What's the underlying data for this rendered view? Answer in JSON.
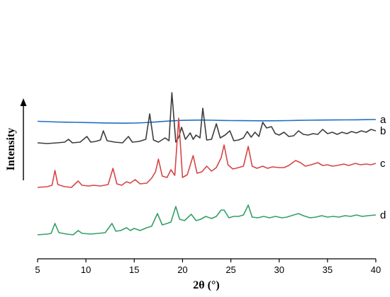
{
  "chart_data": {
    "type": "line",
    "xlabel": "2θ (°)",
    "ylabel": "Intensity",
    "xlim": [
      5,
      40
    ],
    "xticks": [
      5,
      10,
      15,
      20,
      25,
      30,
      35,
      40
    ],
    "tick_labels": [
      "5",
      "10",
      "15",
      "20",
      "25",
      "30",
      "35",
      "40"
    ],
    "legend": "inline-right",
    "grid": false,
    "series": [
      {
        "label": "a",
        "color": "#1f6fc4",
        "offset": 92,
        "points": [
          [
            5,
            1.5
          ],
          [
            6,
            1.0
          ],
          [
            7,
            0.5
          ],
          [
            8,
            0.2
          ],
          [
            9,
            0.0
          ],
          [
            10,
            -0.3
          ],
          [
            11,
            -0.6
          ],
          [
            12,
            -0.9
          ],
          [
            13,
            -1.1
          ],
          [
            14,
            -1.2
          ],
          [
            15,
            -1.0
          ],
          [
            16,
            -0.5
          ],
          [
            17,
            0.3
          ],
          [
            18,
            1.3
          ],
          [
            19,
            2.2
          ],
          [
            20,
            2.8
          ],
          [
            21,
            3.1
          ],
          [
            22,
            3.2
          ],
          [
            23,
            3.0
          ],
          [
            24,
            2.7
          ],
          [
            25,
            2.5
          ],
          [
            26,
            2.4
          ],
          [
            27,
            2.3
          ],
          [
            28,
            2.2
          ],
          [
            29,
            2.2
          ],
          [
            30,
            2.3
          ],
          [
            31,
            2.5
          ],
          [
            32,
            2.8
          ],
          [
            33,
            3.0
          ],
          [
            34,
            3.2
          ],
          [
            35,
            3.3
          ],
          [
            36,
            3.4
          ],
          [
            37,
            3.5
          ],
          [
            38,
            3.6
          ],
          [
            39,
            3.8
          ],
          [
            40,
            4.0
          ]
        ]
      },
      {
        "label": "b",
        "color": "#3d3d3d",
        "offset": 62,
        "points": [
          [
            5,
            1
          ],
          [
            6,
            0
          ],
          [
            7,
            1
          ],
          [
            7.8,
            2
          ],
          [
            8.2,
            6
          ],
          [
            8.6,
            1
          ],
          [
            9.4,
            2
          ],
          [
            10.1,
            10
          ],
          [
            10.5,
            2
          ],
          [
            11,
            3
          ],
          [
            11.5,
            5
          ],
          [
            11.8,
            18
          ],
          [
            12.2,
            4
          ],
          [
            13,
            2
          ],
          [
            13.8,
            1
          ],
          [
            14.4,
            10
          ],
          [
            14.8,
            2
          ],
          [
            15.5,
            3
          ],
          [
            16.2,
            6
          ],
          [
            16.6,
            42
          ],
          [
            17,
            5
          ],
          [
            17.5,
            2
          ],
          [
            18.2,
            8
          ],
          [
            18.6,
            4
          ],
          [
            18.9,
            72
          ],
          [
            19.3,
            2
          ],
          [
            19.6,
            9
          ],
          [
            19.9,
            23
          ],
          [
            20.3,
            6
          ],
          [
            20.8,
            15
          ],
          [
            21.1,
            6
          ],
          [
            21.4,
            12
          ],
          [
            21.8,
            8
          ],
          [
            22.1,
            50
          ],
          [
            22.5,
            5
          ],
          [
            23,
            6
          ],
          [
            23.5,
            28
          ],
          [
            23.9,
            8
          ],
          [
            24.4,
            12
          ],
          [
            24.9,
            18
          ],
          [
            25.3,
            4
          ],
          [
            25.8,
            5
          ],
          [
            26.3,
            8
          ],
          [
            26.7,
            17
          ],
          [
            27.1,
            9
          ],
          [
            27.5,
            16
          ],
          [
            27.9,
            10
          ],
          [
            28.3,
            30
          ],
          [
            28.7,
            22
          ],
          [
            29.2,
            24
          ],
          [
            29.6,
            14
          ],
          [
            30,
            12
          ],
          [
            30.5,
            16
          ],
          [
            31,
            10
          ],
          [
            31.5,
            11
          ],
          [
            32,
            18
          ],
          [
            32.5,
            13
          ],
          [
            33,
            12
          ],
          [
            33.5,
            14
          ],
          [
            34,
            13
          ],
          [
            34.5,
            20
          ],
          [
            35,
            14
          ],
          [
            35.5,
            16
          ],
          [
            36,
            13
          ],
          [
            36.5,
            16
          ],
          [
            37,
            14
          ],
          [
            37.5,
            17
          ],
          [
            38,
            15
          ],
          [
            38.5,
            18
          ],
          [
            39,
            16
          ],
          [
            39.5,
            20
          ],
          [
            40,
            18
          ]
        ]
      },
      {
        "label": "c",
        "color": "#d64545",
        "offset": 0,
        "points": [
          [
            5,
            0
          ],
          [
            6,
            1
          ],
          [
            6.5,
            3
          ],
          [
            6.8,
            24
          ],
          [
            7.1,
            4
          ],
          [
            7.8,
            1
          ],
          [
            8.5,
            0
          ],
          [
            9.2,
            9
          ],
          [
            9.6,
            3
          ],
          [
            10.3,
            2
          ],
          [
            10.8,
            3
          ],
          [
            11.5,
            2
          ],
          [
            12.3,
            4
          ],
          [
            12.8,
            27
          ],
          [
            13.2,
            5
          ],
          [
            13.7,
            3
          ],
          [
            14.2,
            8
          ],
          [
            14.6,
            6
          ],
          [
            15.1,
            11
          ],
          [
            15.6,
            5
          ],
          [
            16.3,
            6
          ],
          [
            16.8,
            13
          ],
          [
            17.2,
            22
          ],
          [
            17.5,
            40
          ],
          [
            17.9,
            16
          ],
          [
            18.4,
            14
          ],
          [
            18.8,
            25
          ],
          [
            19.2,
            17
          ],
          [
            19.6,
            98
          ],
          [
            20,
            14
          ],
          [
            20.5,
            18
          ],
          [
            21.1,
            45
          ],
          [
            21.5,
            20
          ],
          [
            22,
            22
          ],
          [
            22.5,
            30
          ],
          [
            23,
            23
          ],
          [
            23.5,
            28
          ],
          [
            24,
            42
          ],
          [
            24.3,
            60
          ],
          [
            24.7,
            32
          ],
          [
            25.2,
            26
          ],
          [
            25.8,
            28
          ],
          [
            26.3,
            30
          ],
          [
            26.8,
            58
          ],
          [
            27.2,
            30
          ],
          [
            27.7,
            27
          ],
          [
            28.3,
            30
          ],
          [
            28.8,
            27
          ],
          [
            29.3,
            29
          ],
          [
            30,
            28
          ],
          [
            30.5,
            28
          ],
          [
            31,
            31
          ],
          [
            31.7,
            38
          ],
          [
            32.2,
            35
          ],
          [
            32.7,
            30
          ],
          [
            33.3,
            32
          ],
          [
            34,
            35
          ],
          [
            34.5,
            31
          ],
          [
            35,
            32
          ],
          [
            35.5,
            30
          ],
          [
            36,
            31
          ],
          [
            36.7,
            33
          ],
          [
            37.2,
            31
          ],
          [
            37.9,
            34
          ],
          [
            38.4,
            32
          ],
          [
            39,
            33
          ],
          [
            39.5,
            32
          ],
          [
            40,
            34
          ]
        ]
      },
      {
        "label": "d",
        "color": "#33a066",
        "offset": -67,
        "points": [
          [
            5,
            0
          ],
          [
            6,
            1
          ],
          [
            6.4,
            2
          ],
          [
            6.8,
            16
          ],
          [
            7.2,
            3
          ],
          [
            8,
            1
          ],
          [
            8.7,
            0
          ],
          [
            9.2,
            6
          ],
          [
            9.6,
            2
          ],
          [
            10.5,
            1
          ],
          [
            11.3,
            2
          ],
          [
            12,
            3
          ],
          [
            12.7,
            16
          ],
          [
            13.1,
            5
          ],
          [
            13.6,
            6
          ],
          [
            14.2,
            10
          ],
          [
            14.6,
            6
          ],
          [
            15,
            9
          ],
          [
            15.6,
            6
          ],
          [
            16.3,
            10
          ],
          [
            16.8,
            12
          ],
          [
            17.4,
            30
          ],
          [
            17.9,
            14
          ],
          [
            18.4,
            16
          ],
          [
            18.8,
            18
          ],
          [
            19.3,
            40
          ],
          [
            19.7,
            22
          ],
          [
            20.2,
            20
          ],
          [
            20.9,
            29
          ],
          [
            21.4,
            20
          ],
          [
            21.9,
            22
          ],
          [
            22.4,
            26
          ],
          [
            23,
            23
          ],
          [
            23.5,
            26
          ],
          [
            24,
            35
          ],
          [
            24.3,
            35
          ],
          [
            24.8,
            24
          ],
          [
            25.3,
            26
          ],
          [
            25.8,
            26
          ],
          [
            26.3,
            28
          ],
          [
            26.8,
            42
          ],
          [
            27.2,
            25
          ],
          [
            27.8,
            24
          ],
          [
            28.4,
            26
          ],
          [
            29,
            24
          ],
          [
            29.6,
            26
          ],
          [
            30.3,
            24
          ],
          [
            30.8,
            25
          ],
          [
            31.5,
            28
          ],
          [
            32,
            30
          ],
          [
            32.5,
            27
          ],
          [
            33.2,
            24
          ],
          [
            33.8,
            25
          ],
          [
            34.4,
            27
          ],
          [
            35,
            25
          ],
          [
            35.6,
            26
          ],
          [
            36.2,
            25
          ],
          [
            36.8,
            27
          ],
          [
            37.4,
            26
          ],
          [
            38,
            28
          ],
          [
            38.6,
            26
          ],
          [
            39.2,
            27
          ],
          [
            40,
            28
          ]
        ]
      }
    ]
  }
}
